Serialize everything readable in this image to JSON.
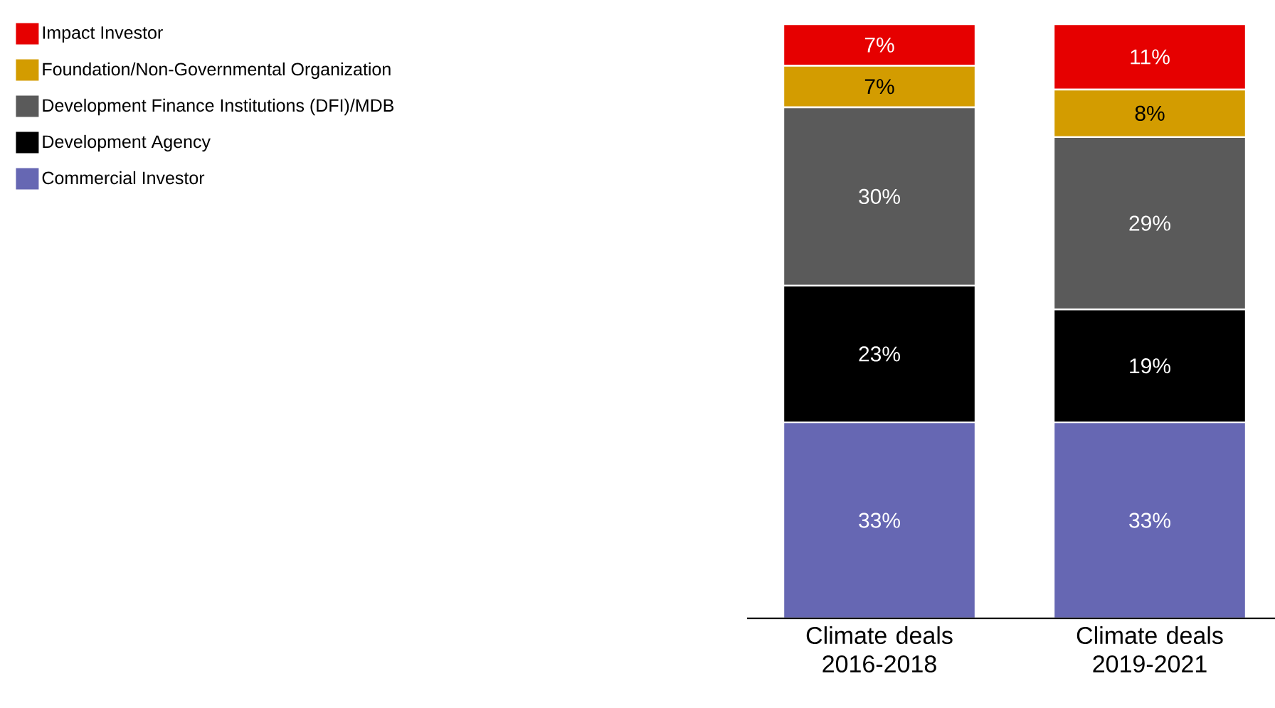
{
  "chart_data": {
    "type": "bar",
    "stacked": true,
    "legend": "top left",
    "categories": [
      "Climate deals 2016-2018",
      "Climate deals 2019-2021"
    ],
    "series": [
      {
        "name": "Commercial Investor",
        "color": "#6667b3",
        "values": [
          33,
          33
        ],
        "value_labels": [
          "33%",
          "33%"
        ]
      },
      {
        "name": "Development Agency",
        "color": "#000000",
        "values": [
          23,
          19
        ],
        "value_labels": [
          "23%",
          "19%"
        ]
      },
      {
        "name": "Development Finance Institutions (DFI)/MDB",
        "color": "#5a5a5a",
        "values": [
          30,
          29
        ],
        "value_labels": [
          "30%",
          "29%"
        ]
      },
      {
        "name": "Foundation/Non-Governmental Organization",
        "color": "#d39c00",
        "values": [
          7,
          8
        ],
        "value_labels": [
          "7%",
          "8%"
        ]
      },
      {
        "name": "Impact Investor",
        "color": "#e60000",
        "values": [
          7,
          11
        ],
        "value_labels": [
          "7%",
          "11%"
        ]
      }
    ]
  }
}
